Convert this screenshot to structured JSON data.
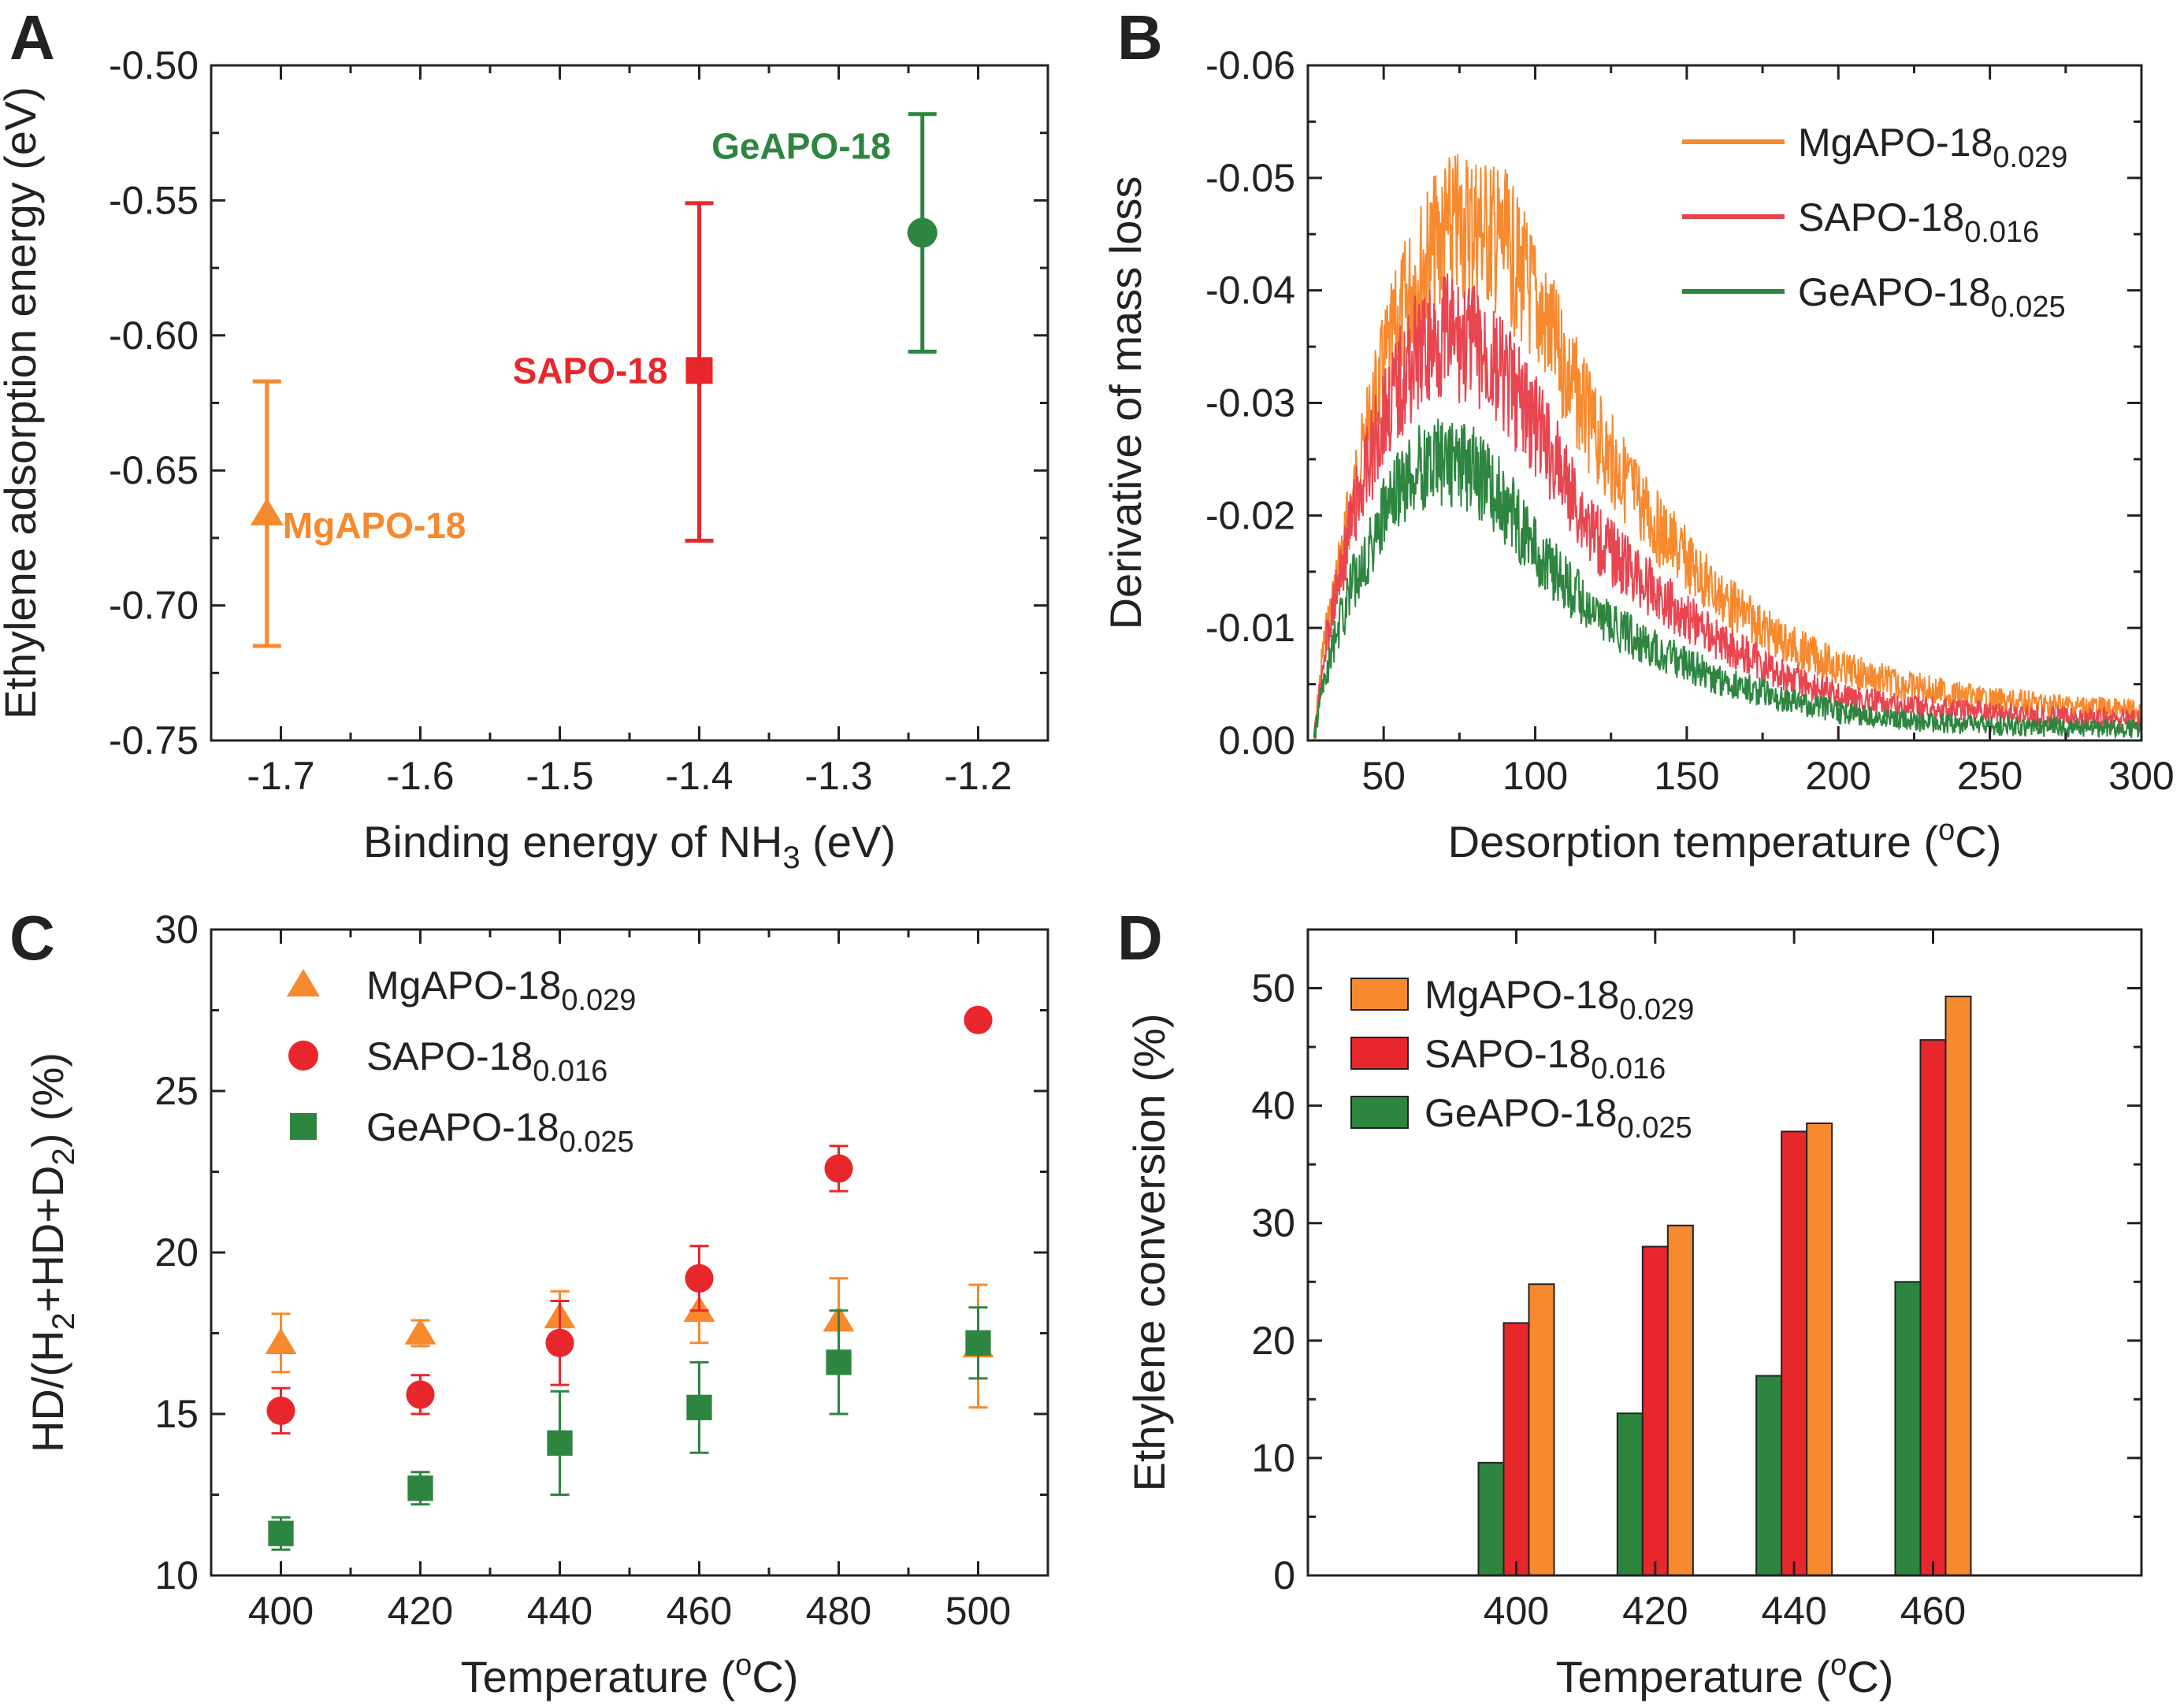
{
  "colors": {
    "mg": "#F7892E",
    "sa": "#E8272C",
    "ge": "#2E8540",
    "sa_line": "#E84550",
    "axis": "#222222"
  },
  "panels": {
    "A": "A",
    "B": "B",
    "C": "C",
    "D": "D"
  },
  "chart_data": [
    {
      "panel": "A",
      "type": "scatter",
      "xlabel": "Binding energy of NH",
      "xlabel_sub": "3",
      "xlabel_tail": " (eV)",
      "ylabel": "Ethylene adsorption energy (eV)",
      "xlim": [
        -1.75,
        -1.15
      ],
      "ylim": [
        -0.75,
        -0.5
      ],
      "xticks": [
        -1.7,
        -1.6,
        -1.5,
        -1.4,
        -1.3,
        -1.2
      ],
      "xtick_labels": [
        "-1.7",
        "-1.6",
        "-1.5",
        "-1.4",
        "-1.3",
        "-1.2"
      ],
      "yticks": [
        -0.75,
        -0.7,
        -0.65,
        -0.6,
        -0.55,
        -0.5
      ],
      "ytick_labels": [
        "-0.75",
        "-0.70",
        "-0.65",
        "-0.60",
        "-0.55",
        "-0.50"
      ],
      "points": [
        {
          "label": "MgAPO-18",
          "x": -1.71,
          "y": -0.666,
          "err_low": -0.715,
          "err_high": -0.617,
          "marker": "triangle",
          "color": "mg"
        },
        {
          "label": "SAPO-18",
          "x": -1.4,
          "y": -0.613,
          "err_low": -0.676,
          "err_high": -0.551,
          "marker": "square",
          "color": "sa"
        },
        {
          "label": "GeAPO-18",
          "x": -1.24,
          "y": -0.562,
          "err_low": -0.606,
          "err_high": -0.518,
          "marker": "circle",
          "color": "ge"
        }
      ]
    },
    {
      "panel": "B",
      "type": "line",
      "xlabel": "Desorption temperature (",
      "xlabel_sup": "o",
      "xlabel_tail": "C)",
      "ylabel": "Derivative of mass loss",
      "xlim": [
        25,
        300
      ],
      "ylim": [
        0.0,
        -0.06
      ],
      "xticks": [
        50,
        100,
        150,
        200,
        250,
        300
      ],
      "xtick_labels": [
        "50",
        "100",
        "150",
        "200",
        "250",
        "300"
      ],
      "yticks": [
        0.0,
        -0.01,
        -0.02,
        -0.03,
        -0.04,
        -0.05,
        -0.06
      ],
      "ytick_labels": [
        "0.00",
        "-0.01",
        "-0.02",
        "-0.03",
        "-0.04",
        "-0.05",
        "-0.06"
      ],
      "series": [
        {
          "name": "MgAPO-18",
          "sub": "0.029",
          "color": "mg",
          "x": [
            27,
            30,
            35,
            40,
            50,
            60,
            70,
            80,
            90,
            100,
            110,
            120,
            140,
            160,
            180,
            200,
            220,
            250,
            280,
            300
          ],
          "y": [
            0.0,
            -0.008,
            -0.015,
            -0.022,
            -0.033,
            -0.041,
            -0.045,
            -0.046,
            -0.044,
            -0.039,
            -0.033,
            -0.027,
            -0.019,
            -0.013,
            -0.009,
            -0.0065,
            -0.005,
            -0.0035,
            -0.003,
            -0.0025
          ]
        },
        {
          "name": "SAPO-18",
          "sub": "0.016",
          "color": "sa_line",
          "x": [
            27,
            30,
            35,
            40,
            50,
            60,
            70,
            80,
            90,
            100,
            110,
            120,
            140,
            160,
            180,
            200,
            220,
            250,
            280,
            300
          ],
          "y": [
            0.0,
            -0.007,
            -0.014,
            -0.02,
            -0.029,
            -0.034,
            -0.036,
            -0.035,
            -0.032,
            -0.028,
            -0.023,
            -0.018,
            -0.013,
            -0.009,
            -0.006,
            -0.004,
            -0.003,
            -0.0025,
            -0.002,
            -0.0018
          ]
        },
        {
          "name": "GeAPO-18",
          "sub": "0.025",
          "color": "ge",
          "x": [
            27,
            30,
            35,
            40,
            50,
            60,
            70,
            80,
            90,
            100,
            110,
            120,
            140,
            160,
            180,
            200,
            220,
            250,
            280,
            300
          ],
          "y": [
            0.0,
            -0.005,
            -0.01,
            -0.014,
            -0.02,
            -0.024,
            -0.025,
            -0.024,
            -0.021,
            -0.017,
            -0.014,
            -0.011,
            -0.008,
            -0.0055,
            -0.0038,
            -0.0025,
            -0.0018,
            -0.0013,
            -0.0011,
            -0.001
          ]
        }
      ],
      "legend": "top-right"
    },
    {
      "panel": "C",
      "type": "scatter",
      "xlabel": "Temperature (",
      "xlabel_sup": "o",
      "xlabel_tail": "C)",
      "ylabel_parts": [
        "HD/(H",
        "2",
        "+HD+D",
        "2",
        ") (%)"
      ],
      "xlim": [
        390,
        510
      ],
      "ylim": [
        10,
        30
      ],
      "xticks": [
        400,
        420,
        440,
        460,
        480,
        500
      ],
      "xtick_labels": [
        "400",
        "420",
        "440",
        "460",
        "480",
        "500"
      ],
      "yticks": [
        10,
        15,
        20,
        25,
        30
      ],
      "ytick_labels": [
        "10",
        "15",
        "20",
        "25",
        "30"
      ],
      "x": [
        400,
        420,
        440,
        460,
        480,
        500
      ],
      "series": [
        {
          "name": "MgAPO-18",
          "sub": "0.029",
          "color": "mg",
          "marker": "triangle",
          "values": [
            17.2,
            17.5,
            18.0,
            18.2,
            17.9,
            17.1
          ],
          "err": [
            0.9,
            0.4,
            0.8,
            1.0,
            1.3,
            1.9
          ]
        },
        {
          "name": "SAPO-18",
          "sub": "0.016",
          "color": "sa",
          "marker": "circle",
          "values": [
            15.1,
            15.6,
            17.2,
            19.2,
            22.6,
            27.2
          ],
          "err": [
            0.7,
            0.6,
            1.3,
            1.0,
            0.7,
            0.0
          ]
        },
        {
          "name": "GeAPO-18",
          "sub": "0.025",
          "color": "ge",
          "marker": "square",
          "values": [
            11.3,
            12.7,
            14.1,
            15.2,
            16.6,
            17.2
          ],
          "err": [
            0.5,
            0.5,
            1.6,
            1.4,
            1.6,
            1.1
          ]
        }
      ],
      "legend": "top-left"
    },
    {
      "panel": "D",
      "type": "bar",
      "xlabel": "Temperature (",
      "xlabel_sup": "o",
      "xlabel_tail": "C)",
      "ylabel": "Ethylene conversion (%)",
      "xlim": [
        370,
        490
      ],
      "ylim": [
        0,
        55
      ],
      "categories": [
        "400",
        "420",
        "440",
        "460"
      ],
      "cat_values": [
        400,
        420,
        440,
        460
      ],
      "yticks": [
        0,
        10,
        20,
        30,
        40,
        50
      ],
      "ytick_labels": [
        "0",
        "10",
        "20",
        "30",
        "40",
        "50"
      ],
      "series": [
        {
          "name": "GeAPO-18",
          "sub": "0.025",
          "color": "ge",
          "values": [
            9.6,
            13.8,
            17.0,
            25.0
          ]
        },
        {
          "name": "SAPO-18",
          "sub": "0.016",
          "color": "sa",
          "values": [
            21.5,
            28.0,
            37.8,
            45.6
          ]
        },
        {
          "name": "MgAPO-18",
          "sub": "0.029",
          "color": "mg",
          "values": [
            24.8,
            29.8,
            38.5,
            49.3
          ]
        }
      ],
      "legend_order": [
        "MgAPO-18",
        "SAPO-18",
        "GeAPO-18"
      ],
      "legend": "top-left"
    }
  ]
}
